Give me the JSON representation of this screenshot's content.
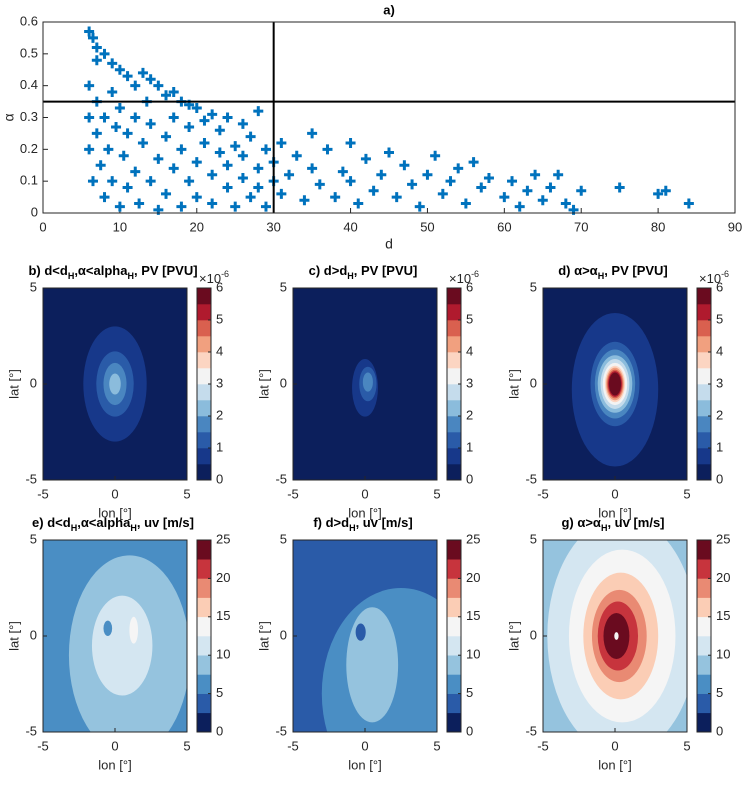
{
  "chart_data": [
    {
      "type": "scatter",
      "title": "a)",
      "xlabel": "d",
      "ylabel": "α",
      "color": "#0072bd",
      "line_color": "#000000",
      "xlim": [
        0,
        90
      ],
      "ylim": [
        0,
        0.6
      ],
      "xticks": [
        0,
        10,
        20,
        30,
        40,
        50,
        60,
        70,
        80,
        90
      ],
      "yticks": [
        0,
        0.1,
        0.2,
        0.3,
        0.4,
        0.5,
        0.6
      ],
      "vline": 30,
      "hline": 0.35,
      "x": [
        6,
        6.5,
        7,
        7,
        8,
        9,
        10,
        11,
        12,
        13,
        14,
        15,
        16,
        17,
        18,
        19,
        20,
        22,
        24,
        26,
        28,
        6,
        6,
        6,
        6.5,
        7,
        7,
        7.5,
        8,
        8,
        8.5,
        9,
        9,
        9.5,
        10,
        10,
        10.5,
        11,
        11,
        12,
        12,
        12.5,
        13,
        13.5,
        14,
        14,
        15,
        15,
        16,
        16,
        17,
        17,
        18,
        18,
        19,
        19,
        20,
        20,
        21,
        21,
        22,
        22,
        23,
        23,
        24,
        24,
        25,
        25,
        26,
        26,
        27,
        27,
        28,
        28,
        29,
        29,
        30,
        30,
        31,
        31,
        32,
        33,
        34,
        35,
        35,
        36,
        37,
        38,
        39,
        40,
        40,
        41,
        42,
        43,
        44,
        45,
        46,
        47,
        48,
        49,
        50,
        51,
        52,
        53,
        54,
        55,
        56,
        57,
        58,
        60,
        61,
        62,
        63,
        64,
        65,
        66,
        67,
        68,
        69,
        70,
        75,
        80,
        81,
        84
      ],
      "y": [
        0.57,
        0.55,
        0.52,
        0.48,
        0.5,
        0.47,
        0.45,
        0.43,
        0.4,
        0.44,
        0.42,
        0.4,
        0.37,
        0.38,
        0.35,
        0.34,
        0.33,
        0.31,
        0.3,
        0.28,
        0.32,
        0.4,
        0.3,
        0.2,
        0.1,
        0.35,
        0.25,
        0.15,
        0.05,
        0.3,
        0.2,
        0.38,
        0.1,
        0.27,
        0.02,
        0.33,
        0.18,
        0.08,
        0.25,
        0.3,
        0.13,
        0.03,
        0.22,
        0.35,
        0.1,
        0.28,
        0.17,
        0.01,
        0.24,
        0.06,
        0.3,
        0.14,
        0.2,
        0.02,
        0.1,
        0.27,
        0.16,
        0.05,
        0.22,
        0.29,
        0.12,
        0.03,
        0.19,
        0.26,
        0.08,
        0.15,
        0.21,
        0.02,
        0.11,
        0.18,
        0.05,
        0.24,
        0.14,
        0.08,
        0.2,
        0.02,
        0.1,
        0.16,
        0.06,
        0.22,
        0.12,
        0.18,
        0.04,
        0.14,
        0.25,
        0.09,
        0.2,
        0.05,
        0.13,
        0.22,
        0.1,
        0.03,
        0.17,
        0.07,
        0.12,
        0.19,
        0.05,
        0.15,
        0.09,
        0.02,
        0.12,
        0.18,
        0.06,
        0.1,
        0.14,
        0.03,
        0.16,
        0.08,
        0.11,
        0.05,
        0.1,
        0.02,
        0.07,
        0.12,
        0.04,
        0.08,
        0.12,
        0.03,
        0.01,
        0.07,
        0.08,
        0.06,
        0.07,
        0.03
      ]
    },
    {
      "type": "contour",
      "title_parts": [
        {
          "text": "b) d<d",
          "sub": false
        },
        {
          "text": "H",
          "sub": true
        },
        {
          "text": ",α<alpha",
          "sub": false
        },
        {
          "text": "H",
          "sub": true
        },
        {
          "text": ", PV [PVU]",
          "sub": false
        }
      ],
      "xlabel": "lon [°]",
      "ylabel": "lat [°]",
      "xlim": [
        -5,
        5
      ],
      "ylim": [
        -5,
        5
      ],
      "xticks": [
        -5,
        0,
        5
      ],
      "yticks": [
        -5,
        0,
        5
      ],
      "clim": [
        0,
        6
      ],
      "cticks": [
        0,
        1,
        2,
        3,
        4,
        5,
        6
      ],
      "cmultiplier": [
        "×10",
        "-6"
      ],
      "colors": [
        "#0c1f5c",
        "#17388a",
        "#2a5ba8",
        "#4a86c0",
        "#8bbcdc",
        "#c5dcec",
        "#f3f3f3",
        "#fcd5c2",
        "#f1a07f",
        "#d9604f",
        "#b01a2e",
        "#6a0b1f"
      ],
      "background": 0,
      "contours": [
        {
          "level": 0.5,
          "cx": 0,
          "cy": 0,
          "rx": 2.2,
          "ry": 3.0
        },
        {
          "level": 1,
          "cx": 0,
          "cy": 0,
          "rx": 1.3,
          "ry": 1.7
        },
        {
          "level": 1.5,
          "cx": 0,
          "cy": 0,
          "rx": 0.8,
          "ry": 1.1
        },
        {
          "level": 2,
          "cx": 0,
          "cy": 0,
          "rx": 0.4,
          "ry": 0.55
        }
      ]
    },
    {
      "type": "contour",
      "title_parts": [
        {
          "text": "c) d>d",
          "sub": false
        },
        {
          "text": "H",
          "sub": true
        },
        {
          "text": ", PV [PVU]",
          "sub": false
        }
      ],
      "xlabel": "lon [°]",
      "ylabel": "lat [°]",
      "xlim": [
        -5,
        5
      ],
      "ylim": [
        -5,
        5
      ],
      "xticks": [
        -5,
        0,
        5
      ],
      "yticks": [
        -5,
        0,
        5
      ],
      "clim": [
        0,
        6
      ],
      "cticks": [
        0,
        1,
        2,
        3,
        4,
        5,
        6
      ],
      "cmultiplier": [
        "×10",
        "-6"
      ],
      "colors": [
        "#0c1f5c",
        "#17388a",
        "#2a5ba8",
        "#4a86c0",
        "#8bbcdc",
        "#c5dcec",
        "#f3f3f3",
        "#fcd5c2",
        "#f1a07f",
        "#d9604f",
        "#b01a2e",
        "#6a0b1f"
      ],
      "background": 0,
      "contours": [
        {
          "level": 0.5,
          "cx": 0,
          "cy": -0.2,
          "rx": 0.9,
          "ry": 1.5
        },
        {
          "level": 1,
          "cx": 0.2,
          "cy": 0,
          "rx": 0.6,
          "ry": 0.9
        },
        {
          "level": 1.5,
          "cx": 0.2,
          "cy": 0.1,
          "rx": 0.35,
          "ry": 0.5
        }
      ]
    },
    {
      "type": "contour",
      "title_parts": [
        {
          "text": "d) α>α",
          "sub": false
        },
        {
          "text": "H",
          "sub": true
        },
        {
          "text": ", PV [PVU]",
          "sub": false
        }
      ],
      "xlabel": "lon [°]",
      "ylabel": "lat [°]",
      "xlim": [
        -5,
        5
      ],
      "ylim": [
        -5,
        5
      ],
      "xticks": [
        -5,
        0,
        5
      ],
      "yticks": [
        -5,
        0,
        5
      ],
      "clim": [
        0,
        6
      ],
      "cticks": [
        0,
        1,
        2,
        3,
        4,
        5,
        6
      ],
      "cmultiplier": [
        "×10",
        "-6"
      ],
      "colors": [
        "#0c1f5c",
        "#17388a",
        "#2a5ba8",
        "#4a86c0",
        "#8bbcdc",
        "#c5dcec",
        "#f3f3f3",
        "#fcd5c2",
        "#f1a07f",
        "#d9604f",
        "#b01a2e",
        "#6a0b1f"
      ],
      "background": 0,
      "contours": [
        {
          "level": 0.5,
          "cx": 0,
          "cy": -0.3,
          "rx": 3.0,
          "ry": 4.0
        },
        {
          "level": 1,
          "cx": 0,
          "cy": 0,
          "rx": 1.7,
          "ry": 2.2
        },
        {
          "level": 1.5,
          "cx": 0,
          "cy": 0,
          "rx": 1.4,
          "ry": 1.8
        },
        {
          "level": 2,
          "cx": 0,
          "cy": 0,
          "rx": 1.2,
          "ry": 1.5
        },
        {
          "level": 2.5,
          "cx": 0,
          "cy": 0,
          "rx": 1.0,
          "ry": 1.3
        },
        {
          "level": 3,
          "cx": 0,
          "cy": 0,
          "rx": 0.85,
          "ry": 1.1
        },
        {
          "level": 3.5,
          "cx": 0,
          "cy": 0,
          "rx": 0.7,
          "ry": 0.95
        },
        {
          "level": 4,
          "cx": 0,
          "cy": 0,
          "rx": 0.62,
          "ry": 0.85
        },
        {
          "level": 4.5,
          "cx": 0,
          "cy": 0,
          "rx": 0.55,
          "ry": 0.75
        },
        {
          "level": 5,
          "cx": 0,
          "cy": 0,
          "rx": 0.48,
          "ry": 0.67
        },
        {
          "level": 5.5,
          "cx": 0,
          "cy": 0,
          "rx": 0.42,
          "ry": 0.6
        }
      ]
    },
    {
      "type": "contour",
      "title_parts": [
        {
          "text": "e) d<d",
          "sub": false
        },
        {
          "text": "H",
          "sub": true
        },
        {
          "text": ",α<alpha",
          "sub": false
        },
        {
          "text": "H",
          "sub": true
        },
        {
          "text": ", uv [m/s]",
          "sub": false
        }
      ],
      "xlabel": "lon [°]",
      "ylabel": "lat [°]",
      "xlim": [
        -5,
        5
      ],
      "ylim": [
        -5,
        5
      ],
      "xticks": [
        -5,
        0,
        5
      ],
      "yticks": [
        -5,
        0,
        5
      ],
      "clim": [
        0,
        25
      ],
      "cticks": [
        0,
        5,
        10,
        15,
        20,
        25
      ],
      "colors": [
        "#0c1f5c",
        "#2a5ba8",
        "#4a8ec4",
        "#95c3de",
        "#d4e6f1",
        "#f5f5f5",
        "#fbcdb5",
        "#e98a73",
        "#c7343d",
        "#6a0b1f"
      ],
      "background": 5,
      "contours": [
        {
          "level": 7.5,
          "cx": 1,
          "cy": -1,
          "rx": 4.2,
          "ry": 5.2
        },
        {
          "level": 10,
          "cx": 0.5,
          "cy": -0.5,
          "rx": 2.1,
          "ry": 2.6
        },
        {
          "level": 5,
          "cx": -0.5,
          "cy": 0.4,
          "rx": 0.3,
          "ry": 0.4
        },
        {
          "level": 12.5,
          "cx": 1.3,
          "cy": 0.3,
          "rx": 0.3,
          "ry": 0.7
        }
      ]
    },
    {
      "type": "contour",
      "title_parts": [
        {
          "text": "f) d>d",
          "sub": false
        },
        {
          "text": "H",
          "sub": true
        },
        {
          "text": ", uv [m/s]",
          "sub": false
        }
      ],
      "xlabel": "lon [°]",
      "ylabel": "lat [°]",
      "xlim": [
        -5,
        5
      ],
      "ylim": [
        -5,
        5
      ],
      "xticks": [
        -5,
        0,
        5
      ],
      "yticks": [
        -5,
        0,
        5
      ],
      "clim": [
        0,
        25
      ],
      "cticks": [
        0,
        5,
        10,
        15,
        20,
        25
      ],
      "colors": [
        "#0c1f5c",
        "#2a5ba8",
        "#4a8ec4",
        "#95c3de",
        "#d4e6f1",
        "#f5f5f5",
        "#fbcdb5",
        "#e98a73",
        "#c7343d",
        "#6a0b1f"
      ],
      "background": 2.5,
      "contours": [
        {
          "level": 5,
          "cx": 2.5,
          "cy": -3,
          "rx": 5.5,
          "ry": 5.5
        },
        {
          "level": 7.5,
          "cx": 0.5,
          "cy": -1.5,
          "rx": 1.8,
          "ry": 3.0
        },
        {
          "level": 2.5,
          "cx": -0.3,
          "cy": 0.2,
          "rx": 0.35,
          "ry": 0.45
        }
      ]
    },
    {
      "type": "contour",
      "title_parts": [
        {
          "text": "g) α>α",
          "sub": false
        },
        {
          "text": "H",
          "sub": true
        },
        {
          "text": ", uv [m/s]",
          "sub": false
        }
      ],
      "xlabel": "lon [°]",
      "ylabel": "lat [°]",
      "xlim": [
        -5,
        5
      ],
      "ylim": [
        -5,
        5
      ],
      "xticks": [
        -5,
        0,
        5
      ],
      "yticks": [
        -5,
        0,
        5
      ],
      "clim": [
        0,
        25
      ],
      "cticks": [
        0,
        5,
        10,
        15,
        20,
        25
      ],
      "colors": [
        "#0c1f5c",
        "#2a5ba8",
        "#4a8ec4",
        "#95c3de",
        "#d4e6f1",
        "#f5f5f5",
        "#fbcdb5",
        "#e98a73",
        "#c7343d",
        "#6a0b1f"
      ],
      "background": 7.5,
      "contours": [
        {
          "level": 10,
          "cx": 0.5,
          "cy": 0,
          "rx": 5.2,
          "ry": 6.2
        },
        {
          "level": 12.5,
          "cx": 0.5,
          "cy": 0,
          "rx": 3.7,
          "ry": 4.5
        },
        {
          "level": 15,
          "cx": 0.4,
          "cy": 0,
          "rx": 2.6,
          "ry": 3.3
        },
        {
          "level": 17.5,
          "cx": 0.3,
          "cy": 0,
          "rx": 1.9,
          "ry": 2.4
        },
        {
          "level": 20,
          "cx": 0.2,
          "cy": 0,
          "rx": 1.4,
          "ry": 1.8
        },
        {
          "level": 22.5,
          "cx": 0.1,
          "cy": 0,
          "rx": 0.9,
          "ry": 1.2
        },
        {
          "level": 12.5,
          "cx": 0.1,
          "cy": 0,
          "rx": 0.15,
          "ry": 0.2
        }
      ]
    }
  ]
}
